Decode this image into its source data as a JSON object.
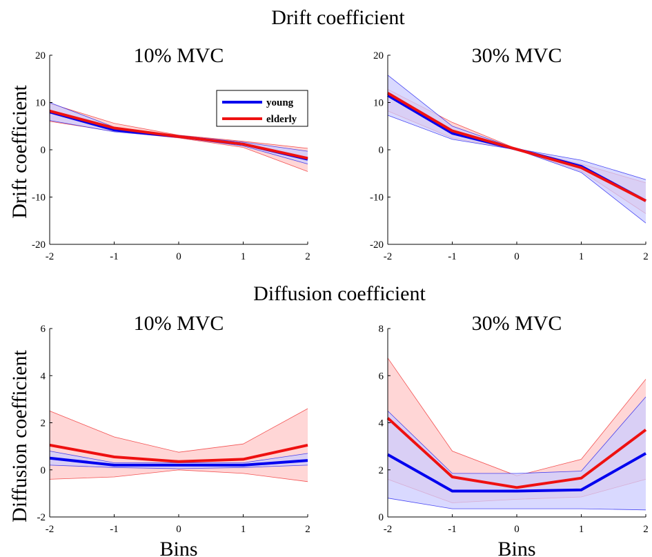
{
  "figure": {
    "drift_title": "Drift coefficient",
    "diffusion_title": "Diffusion coefficient"
  },
  "colors": {
    "young": "#0000ee",
    "elderly": "#ee1111",
    "young_fill": "#ccccff",
    "elderly_fill": "#ffcccc"
  },
  "chart_data": [
    {
      "type": "line",
      "title": "10% MVC",
      "xlabel": "",
      "ylabel": "Drift coefficient",
      "x": [
        -2,
        -1,
        0,
        1,
        2
      ],
      "xlim": [
        -2,
        2
      ],
      "ylim": [
        -20,
        20
      ],
      "xticks": [
        -2,
        -1,
        0,
        1,
        2
      ],
      "yticks": [
        -20,
        -10,
        0,
        10,
        20
      ],
      "legend": {
        "entries": [
          "young",
          "elderly"
        ],
        "placement": "top-right"
      },
      "series": [
        {
          "name": "young",
          "values": [
            8.0,
            4.2,
            2.8,
            1.2,
            -2.0
          ],
          "lower": [
            6.2,
            3.8,
            2.6,
            0.8,
            -3.0
          ],
          "upper": [
            10.0,
            4.8,
            3.0,
            1.6,
            -0.3
          ]
        },
        {
          "name": "elderly",
          "values": [
            8.2,
            4.6,
            2.8,
            1.2,
            -1.8
          ],
          "lower": [
            6.0,
            3.9,
            2.5,
            0.5,
            -4.6
          ],
          "upper": [
            9.8,
            5.6,
            3.1,
            1.8,
            0.3
          ]
        }
      ]
    },
    {
      "type": "line",
      "title": "30% MVC",
      "xlabel": "",
      "ylabel": "",
      "x": [
        -2,
        -1,
        0,
        1,
        2
      ],
      "xlim": [
        -2,
        2
      ],
      "ylim": [
        -20,
        20
      ],
      "xticks": [
        -2,
        -1,
        0,
        1,
        2
      ],
      "yticks": [
        -20,
        -10,
        0,
        10,
        20
      ],
      "series": [
        {
          "name": "young",
          "values": [
            11.5,
            3.5,
            0.1,
            -3.5,
            -10.8
          ],
          "lower": [
            7.3,
            2.2,
            0.0,
            -4.8,
            -15.5
          ],
          "upper": [
            15.8,
            5.0,
            0.2,
            -2.2,
            -6.3
          ]
        },
        {
          "name": "elderly",
          "values": [
            12.0,
            4.0,
            0.1,
            -3.8,
            -10.8
          ],
          "lower": [
            8.2,
            2.5,
            0.0,
            -4.5,
            -13.5
          ],
          "upper": [
            12.8,
            5.8,
            0.2,
            -3.0,
            -7.0
          ]
        }
      ]
    },
    {
      "type": "line",
      "title": "10% MVC",
      "xlabel": "Bins",
      "ylabel": "Diffusion coefficient",
      "x": [
        -2,
        -1,
        0,
        1,
        2
      ],
      "xlim": [
        -2,
        2
      ],
      "ylim": [
        -2,
        6
      ],
      "xticks": [
        -2,
        -1,
        0,
        1,
        2
      ],
      "yticks": [
        -2,
        0,
        2,
        4,
        6
      ],
      "series": [
        {
          "name": "young",
          "values": [
            0.5,
            0.2,
            0.2,
            0.2,
            0.4
          ],
          "lower": [
            0.2,
            0.1,
            0.05,
            0.1,
            0.2
          ],
          "upper": [
            0.8,
            0.3,
            0.3,
            0.3,
            0.7
          ]
        },
        {
          "name": "elderly",
          "values": [
            1.05,
            0.55,
            0.35,
            0.45,
            1.05
          ],
          "lower": [
            -0.4,
            -0.3,
            0.0,
            -0.15,
            -0.5
          ],
          "upper": [
            2.5,
            1.4,
            0.75,
            1.1,
            2.6
          ]
        }
      ]
    },
    {
      "type": "line",
      "title": "30% MVC",
      "xlabel": "Bins",
      "ylabel": "",
      "x": [
        -2,
        -1,
        0,
        1,
        2
      ],
      "xlim": [
        -2,
        2
      ],
      "ylim": [
        0,
        8
      ],
      "xticks": [
        -2,
        -1,
        0,
        1,
        2
      ],
      "yticks": [
        0,
        2,
        4,
        6,
        8
      ],
      "series": [
        {
          "name": "young",
          "values": [
            2.65,
            1.1,
            1.1,
            1.15,
            2.7
          ],
          "lower": [
            0.8,
            0.35,
            0.35,
            0.35,
            0.3
          ],
          "upper": [
            4.5,
            1.85,
            1.85,
            1.95,
            5.1
          ]
        },
        {
          "name": "elderly",
          "values": [
            4.2,
            1.7,
            1.25,
            1.65,
            3.7
          ],
          "lower": [
            1.6,
            0.6,
            0.75,
            0.85,
            1.6
          ],
          "upper": [
            6.75,
            2.8,
            1.75,
            2.45,
            5.85
          ]
        }
      ]
    }
  ]
}
